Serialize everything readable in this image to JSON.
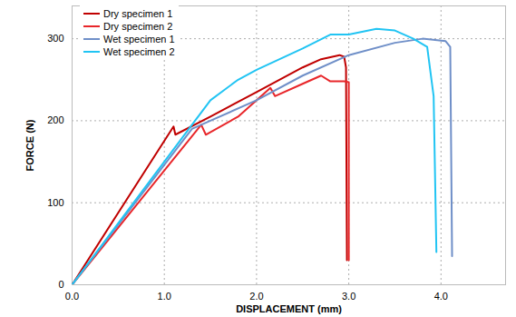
{
  "chart_data": {
    "type": "line",
    "xlabel": "DISPLACEMENT (mm)",
    "ylabel": "FORCE (N)",
    "xlim": [
      0,
      4.7
    ],
    "xticks": [
      0,
      1,
      2,
      3,
      4
    ],
    "ylim": [
      0,
      340
    ],
    "yticks": [
      0,
      100,
      200,
      300
    ],
    "grid": true,
    "legend": "upper left",
    "series": [
      {
        "name": "Dry specimen 1",
        "color": "#c00000",
        "x": [
          0,
          1.1,
          1.12,
          1.5,
          2,
          2.5,
          2.7,
          2.9,
          2.95,
          2.97,
          2.98
        ],
        "values": [
          0,
          193,
          183,
          205,
          235,
          265,
          275,
          280,
          278,
          265,
          30
        ]
      },
      {
        "name": "Dry specimen 2",
        "color": "#e8262a",
        "x": [
          0,
          1.4,
          1.45,
          1.8,
          2.15,
          2.2,
          2.5,
          2.7,
          2.8,
          2.95,
          3.0,
          3.0
        ],
        "values": [
          0,
          195,
          183,
          205,
          240,
          230,
          245,
          255,
          248,
          248,
          247,
          30
        ]
      },
      {
        "name": "Wet specimen 1",
        "color": "#6f8fc8",
        "x": [
          0,
          1.3,
          1.5,
          2,
          2.5,
          3,
          3.5,
          3.8,
          4.05,
          4.1,
          4.12
        ],
        "values": [
          0,
          190,
          200,
          225,
          255,
          280,
          295,
          300,
          297,
          290,
          35
        ]
      },
      {
        "name": "Wet specimen 2",
        "color": "#21c4f3",
        "x": [
          0,
          1.2,
          1.5,
          1.8,
          2,
          2.5,
          2.8,
          3.0,
          3.3,
          3.5,
          3.7,
          3.85,
          3.92,
          3.95
        ],
        "values": [
          0,
          180,
          225,
          250,
          262,
          288,
          305,
          305,
          312,
          310,
          300,
          290,
          230,
          40
        ]
      }
    ]
  }
}
